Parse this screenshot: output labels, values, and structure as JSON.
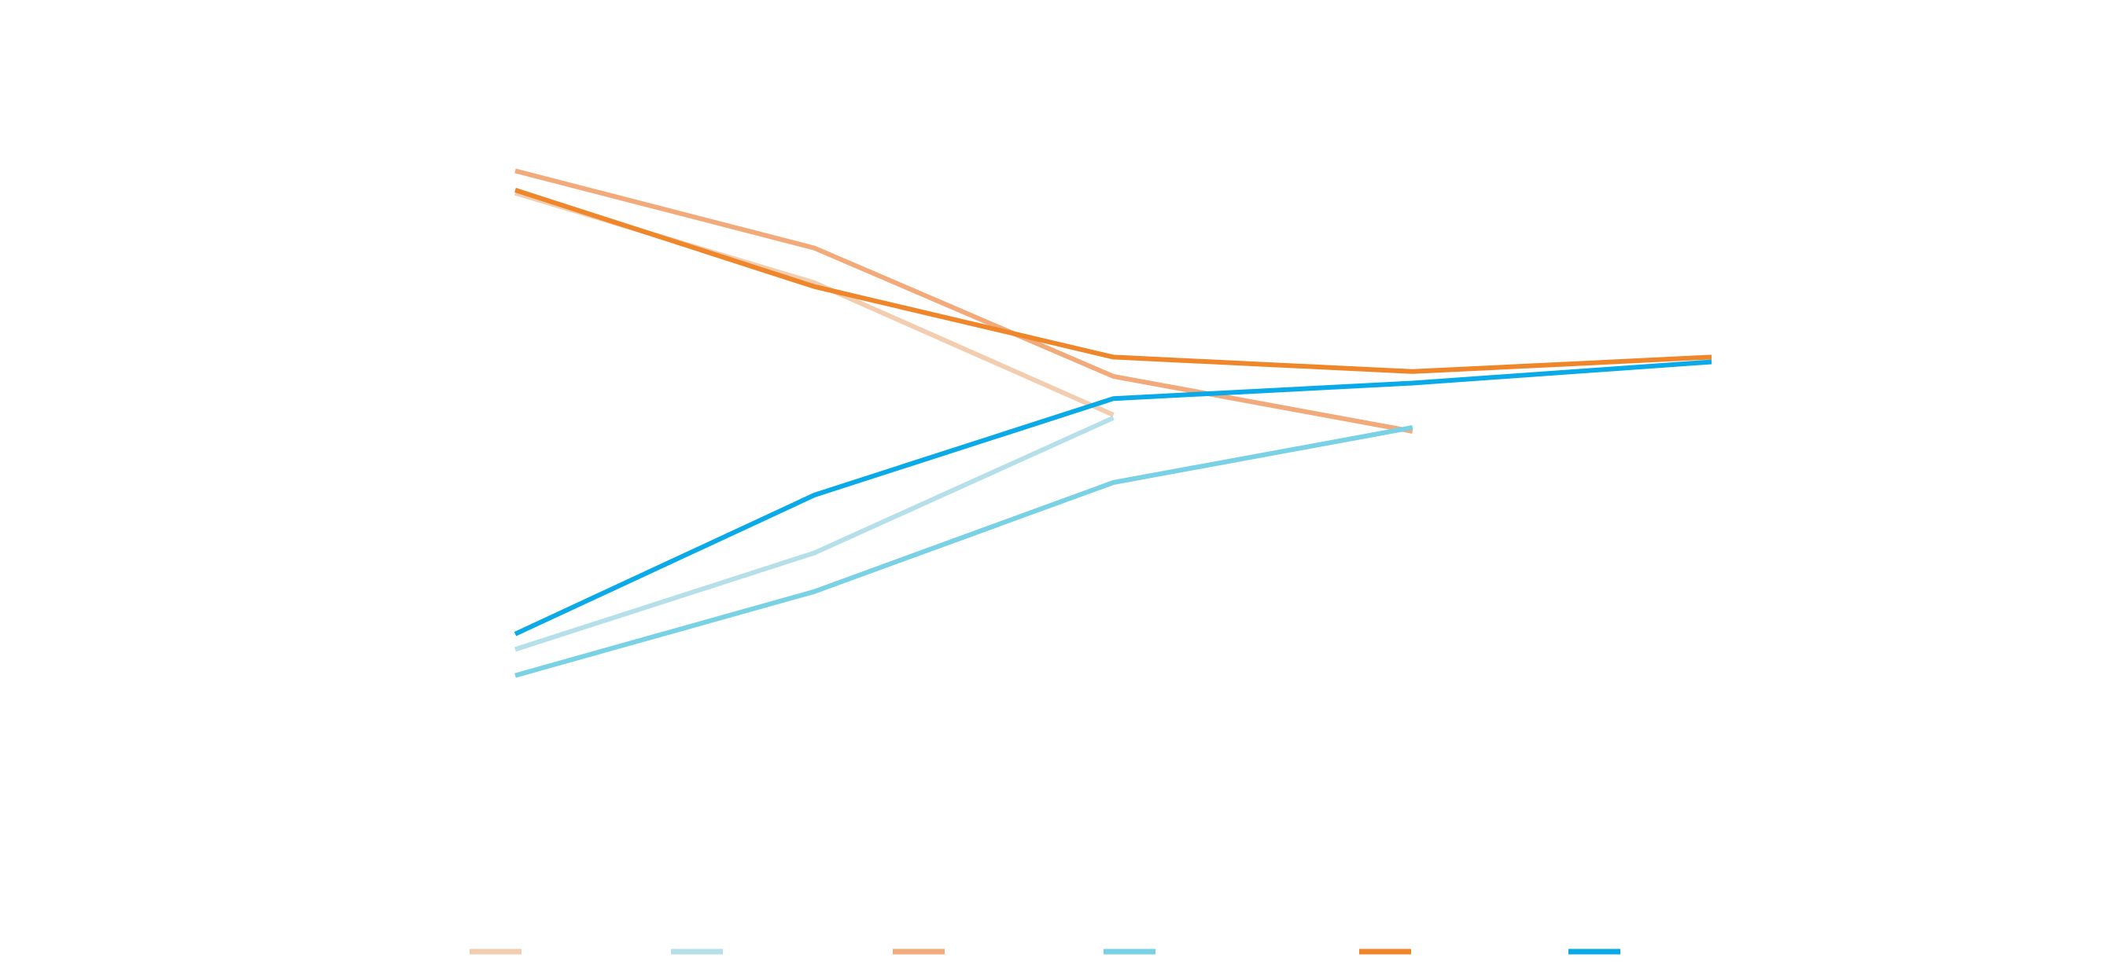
{
  "chart_data": {
    "type": "line",
    "title": "",
    "xlabel": "",
    "ylabel": "",
    "x": [
      1,
      2,
      3,
      4,
      5
    ],
    "ylim": [
      0,
      100
    ],
    "grid": false,
    "axes_visible": false,
    "legend": {
      "position": "bottom",
      "labels_visible": false
    },
    "series": [
      {
        "color": "#F2CDB0",
        "values": [
          80.0,
          70.7,
          57.0,
          null,
          null
        ]
      },
      {
        "color": "#B5E0EA",
        "values": [
          32.7,
          42.7,
          56.7,
          null,
          null
        ]
      },
      {
        "color": "#F2AA7A",
        "values": [
          82.3,
          74.3,
          61.0,
          55.3,
          null
        ]
      },
      {
        "color": "#79D1E6",
        "values": [
          30.0,
          38.7,
          50.0,
          55.7,
          null
        ]
      },
      {
        "color": "#F0862A",
        "values": [
          80.3,
          70.3,
          63.0,
          61.5,
          63.0
        ]
      },
      {
        "color": "#0AAAE8",
        "values": [
          34.3,
          48.7,
          58.7,
          60.3,
          62.5
        ]
      }
    ]
  }
}
